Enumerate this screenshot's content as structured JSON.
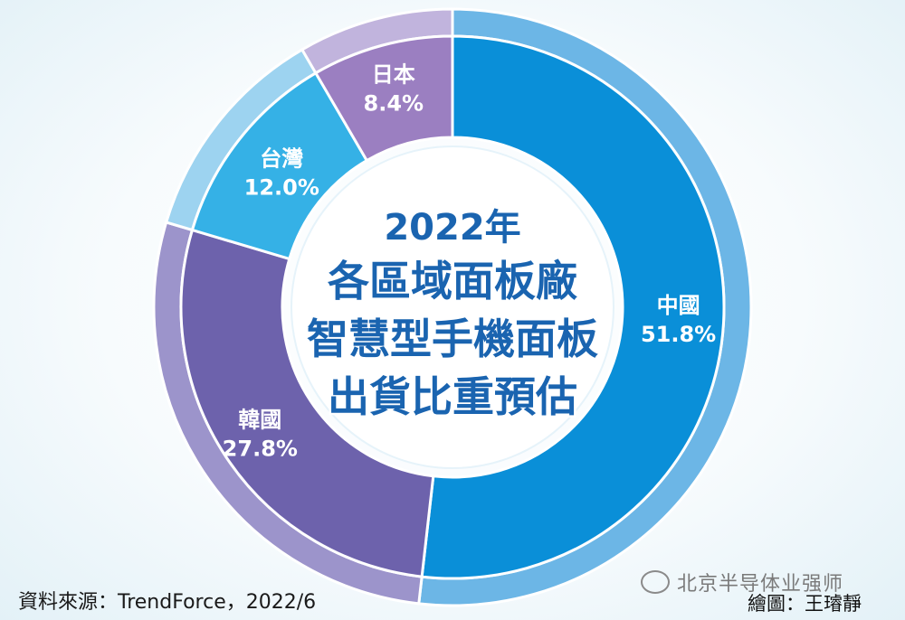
{
  "chart_data": {
    "type": "pie",
    "style": "donut",
    "title_lines": [
      "2022年",
      "各區域面板廠",
      "智慧型手機面板",
      "出貨比重預估"
    ],
    "slices": [
      {
        "label": "中國",
        "value": 51.8,
        "value_text": "51.8%",
        "outer_color": "#6cb6e6",
        "inner_color": "#0a8fd8"
      },
      {
        "label": "韓國",
        "value": 27.8,
        "value_text": "27.8%",
        "outer_color": "#9c94cb",
        "inner_color": "#6d62ac"
      },
      {
        "label": "台灣",
        "value": 12.0,
        "value_text": "12.0%",
        "outer_color": "#9dd3f0",
        "inner_color": "#35b1e6"
      },
      {
        "label": "日本",
        "value": 8.4,
        "value_text": "8.4%",
        "outer_color": "#c1b4dd",
        "inner_color": "#9b7fc1"
      }
    ],
    "start": "top",
    "direction": "clockwise"
  },
  "footer": {
    "source": "資料來源：TrendForce，2022/6",
    "credit": "繪圖：王璿靜",
    "watermark": "北京半导体业强师"
  }
}
